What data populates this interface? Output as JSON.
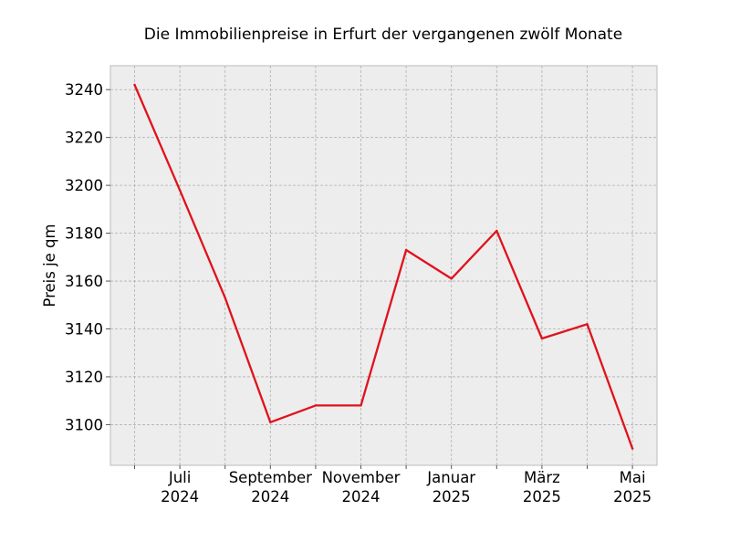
{
  "chart_data": {
    "type": "line",
    "title": "Die Immobilienpreise in Erfurt der vergangenen zwölf Monate",
    "xlabel": "",
    "ylabel": "Preis je qm",
    "x": [
      "2024-06",
      "2024-07",
      "2024-08",
      "2024-09",
      "2024-10",
      "2024-11",
      "2024-12",
      "2025-01",
      "2025-02",
      "2025-03",
      "2025-04",
      "2025-05"
    ],
    "series": [
      {
        "values": [
          3242,
          3198,
          3153,
          3101,
          3108,
          3108,
          3173,
          3161,
          3181,
          3136,
          3142,
          3090
        ],
        "color": "#e0121c"
      }
    ],
    "ylim": [
      3083,
      3250
    ],
    "yticks": [
      3100,
      3120,
      3140,
      3160,
      3180,
      3200,
      3220,
      3240
    ],
    "xtick_labels": [
      {
        "index": 1,
        "month": "Juli",
        "year": "2024"
      },
      {
        "index": 3,
        "month": "September",
        "year": "2024"
      },
      {
        "index": 5,
        "month": "November",
        "year": "2024"
      },
      {
        "index": 7,
        "month": "Januar",
        "year": "2025"
      },
      {
        "index": 9,
        "month": "März",
        "year": "2025"
      },
      {
        "index": 11,
        "month": "Mai",
        "year": "2025"
      }
    ],
    "grid": true,
    "background_color": "#ededed",
    "grid_color": "#b0b0b0"
  }
}
